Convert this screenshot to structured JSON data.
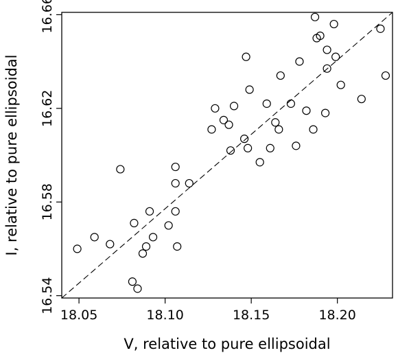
{
  "chart_data": {
    "type": "scatter",
    "xlabel": "V, relative to pure ellipsoidal",
    "ylabel": "I, relative to pure ellipsoidal",
    "xlim": [
      18.04,
      18.232
    ],
    "ylim": [
      16.539,
      16.661
    ],
    "xticks": [
      18.05,
      18.1,
      18.15,
      18.2
    ],
    "xtick_labels": [
      "18.05",
      "18.10",
      "18.15",
      "18.20"
    ],
    "yticks": [
      16.54,
      16.58,
      16.62,
      16.66
    ],
    "ytick_labels": [
      "16.54",
      "16.58",
      "16.62",
      "16.66"
    ],
    "grid": false,
    "reference_line": {
      "style": "dashed",
      "from": [
        18.04,
        16.539
      ],
      "to": [
        18.232,
        16.661
      ]
    },
    "series": [
      {
        "points": [
          [
            18.049,
            16.56
          ],
          [
            18.059,
            16.565
          ],
          [
            18.068,
            16.562
          ],
          [
            18.074,
            16.594
          ],
          [
            18.081,
            16.546
          ],
          [
            18.082,
            16.571
          ],
          [
            18.084,
            16.543
          ],
          [
            18.087,
            16.558
          ],
          [
            18.089,
            16.561
          ],
          [
            18.091,
            16.576
          ],
          [
            18.093,
            16.565
          ],
          [
            18.102,
            16.57
          ],
          [
            18.106,
            16.576
          ],
          [
            18.106,
            16.588
          ],
          [
            18.106,
            16.595
          ],
          [
            18.107,
            16.561
          ],
          [
            18.114,
            16.588
          ],
          [
            18.127,
            16.611
          ],
          [
            18.129,
            16.62
          ],
          [
            18.134,
            16.615
          ],
          [
            18.137,
            16.613
          ],
          [
            18.138,
            16.602
          ],
          [
            18.14,
            16.621
          ],
          [
            18.146,
            16.607
          ],
          [
            18.147,
            16.642
          ],
          [
            18.148,
            16.603
          ],
          [
            18.149,
            16.628
          ],
          [
            18.155,
            16.597
          ],
          [
            18.159,
            16.622
          ],
          [
            18.161,
            16.603
          ],
          [
            18.164,
            16.614
          ],
          [
            18.166,
            16.611
          ],
          [
            18.167,
            16.634
          ],
          [
            18.173,
            16.622
          ],
          [
            18.176,
            16.604
          ],
          [
            18.178,
            16.64
          ],
          [
            18.182,
            16.619
          ],
          [
            18.186,
            16.611
          ],
          [
            18.187,
            16.659
          ],
          [
            18.188,
            16.65
          ],
          [
            18.19,
            16.651
          ],
          [
            18.193,
            16.618
          ],
          [
            18.194,
            16.637
          ],
          [
            18.194,
            16.645
          ],
          [
            18.198,
            16.656
          ],
          [
            18.199,
            16.642
          ],
          [
            18.202,
            16.63
          ],
          [
            18.214,
            16.624
          ],
          [
            18.225,
            16.654
          ],
          [
            18.228,
            16.634
          ]
        ]
      }
    ]
  }
}
